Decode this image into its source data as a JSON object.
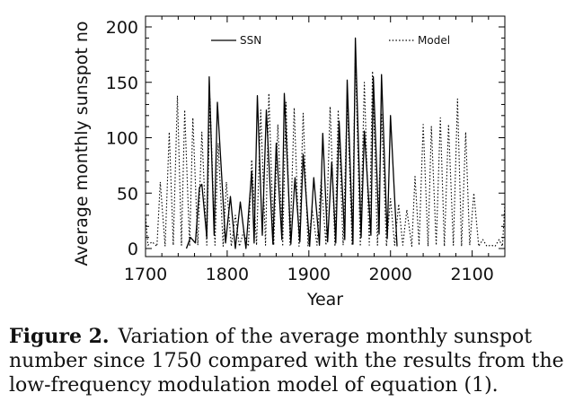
{
  "chart_data": {
    "type": "line",
    "title": "",
    "xlabel": "Year",
    "ylabel": "Average monthly sunspot no",
    "xlim": [
      1700,
      2140
    ],
    "ylim": [
      0,
      200
    ],
    "x_ticks": [
      "1700",
      "1800",
      "1900",
      "2000",
      "2100"
    ],
    "y_ticks": [
      "0",
      "50",
      "100",
      "150",
      "200"
    ],
    "legend_position": "top",
    "grid": false,
    "series": [
      {
        "name": "SSN",
        "style": "solid",
        "color": "#000000",
        "x": [
          1750,
          1755,
          1761,
          1766,
          1769,
          1775,
          1778,
          1784,
          1788,
          1798,
          1804,
          1810,
          1816,
          1823,
          1830,
          1833,
          1837,
          1843,
          1848,
          1856,
          1860,
          1867,
          1870,
          1878,
          1883,
          1889,
          1893,
          1901,
          1906,
          1913,
          1917,
          1923,
          1928,
          1933,
          1937,
          1944,
          1947,
          1954,
          1957,
          1964,
          1968,
          1976,
          1979,
          1986,
          1989,
          1996,
          2000,
          2008
        ],
        "y": [
          0,
          10,
          5,
          55,
          58,
          10,
          155,
          12,
          132,
          5,
          47,
          0,
          42,
          0,
          70,
          5,
          138,
          12,
          125,
          4,
          95,
          8,
          140,
          4,
          64,
          6,
          85,
          2,
          64,
          3,
          104,
          6,
          78,
          5,
          115,
          8,
          152,
          4,
          190,
          10,
          106,
          12,
          155,
          13,
          157,
          9,
          120,
          2
        ]
      },
      {
        "name": "Model",
        "style": "dotted",
        "color": "#000000",
        "x": [
          1700,
          1703,
          1708,
          1714,
          1718,
          1724,
          1729,
          1734,
          1739,
          1744,
          1748,
          1754,
          1758,
          1764,
          1769,
          1775,
          1779,
          1785,
          1789,
          1795,
          1799,
          1805,
          1810,
          1815,
          1820,
          1826,
          1830,
          1836,
          1841,
          1847,
          1851,
          1857,
          1862,
          1868,
          1872,
          1877,
          1882,
          1888,
          1893,
          1899,
          1904,
          1910,
          1915,
          1921,
          1926,
          1932,
          1936,
          1942,
          1947,
          1953,
          1957,
          1963,
          1968,
          1974,
          1978,
          1984,
          1989,
          1995,
          2000,
          2005,
          2010,
          2015,
          2020,
          2026,
          2030,
          2035,
          2040,
          2046,
          2050,
          2056,
          2061,
          2066,
          2071,
          2077,
          2082,
          2087,
          2092,
          2097,
          2102,
          2108,
          2113,
          2118,
          2123,
          2128,
          2133,
          2137,
          2140
        ],
        "y": [
          30,
          3,
          6,
          2,
          60,
          2,
          105,
          3,
          138,
          3,
          125,
          2,
          118,
          3,
          105,
          3,
          135,
          3,
          95,
          2,
          60,
          2,
          30,
          2,
          15,
          2,
          80,
          3,
          125,
          3,
          140,
          3,
          112,
          2,
          132,
          3,
          127,
          2,
          122,
          2,
          35,
          3,
          62,
          3,
          128,
          2,
          125,
          3,
          135,
          3,
          175,
          2,
          150,
          3,
          160,
          3,
          122,
          2,
          45,
          3,
          40,
          3,
          35,
          2,
          65,
          3,
          112,
          2,
          110,
          3,
          118,
          2,
          112,
          3,
          135,
          2,
          105,
          3,
          50,
          2,
          8,
          2,
          3,
          2,
          8,
          2,
          40
        ]
      }
    ]
  },
  "caption": {
    "label": "Figure 2.",
    "text": "Variation of the average monthly sunspot number since 1750 compared with the results from the low-frequency modulation model of equation (1)."
  }
}
